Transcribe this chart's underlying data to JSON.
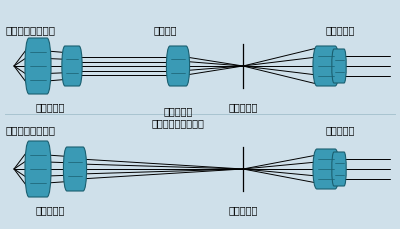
{
  "bg_color": "#cfe0ea",
  "lens_color": "#3a9ab5",
  "lens_edge_color": "#1a5f70",
  "line_color": "#000000",
  "text_color": "#000000",
  "title1": "無限遠補正光学系",
  "title2": "有限遠補正光学系",
  "label_parallel": "平行光線",
  "label_eyepiece": "接眼レンズ",
  "label_objective": "対物レンズ",
  "label_tube": "結像レンズ\n（チューブレンズ）",
  "label_intermediate": "中間像位置",
  "font_size": 7
}
